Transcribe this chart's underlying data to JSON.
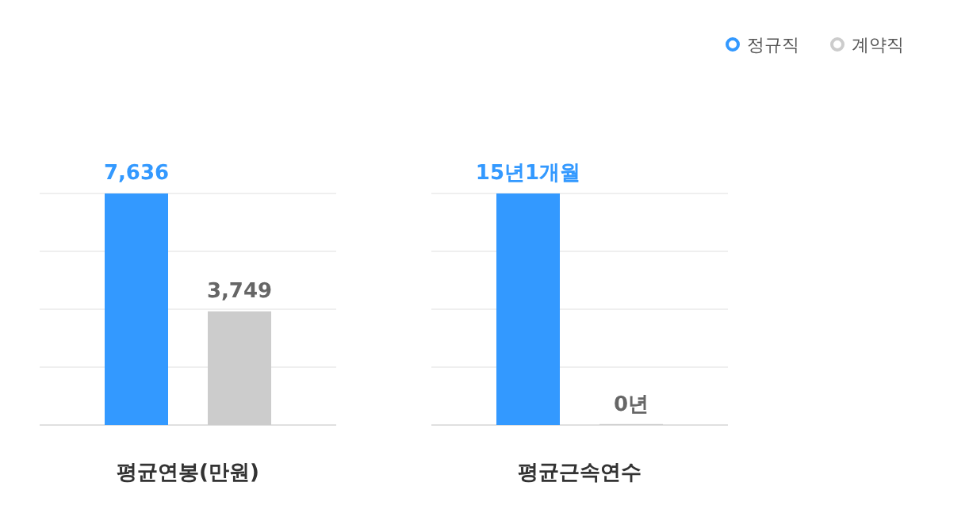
{
  "chart_data": [
    {
      "type": "bar",
      "categories": [
        null
      ],
      "xlabel": "평균연봉(만원)",
      "ylim": [
        0,
        7636
      ],
      "yticks": [
        {
          "value": 0,
          "label": null
        },
        {
          "value": 1909,
          "label": null
        },
        {
          "value": 3818,
          "label": null
        },
        {
          "value": 5727,
          "label": null
        },
        {
          "value": 7636,
          "label": null
        }
      ],
      "grid": "y",
      "series": [
        {
          "color": "#3399ff",
          "values": [
            7636
          ],
          "value_labels": [
            "7,636"
          ]
        },
        {
          "color": "#cccccc",
          "values": [
            3749
          ],
          "value_labels": [
            "3,749"
          ]
        }
      ]
    },
    {
      "type": "bar",
      "categories": [
        null
      ],
      "xlabel": "평균근속연수",
      "ylim": [
        0,
        15.08
      ],
      "yticks": [
        {
          "value": 0,
          "label": null
        },
        {
          "value": 3.77,
          "label": null
        },
        {
          "value": 7.54,
          "label": null
        },
        {
          "value": 11.31,
          "label": null
        },
        {
          "value": 15.08,
          "label": null
        }
      ],
      "grid": "y",
      "legend": "top right",
      "series": [
        {
          "name": "정규직",
          "color": "#3399ff",
          "values": [
            15.08
          ],
          "value_labels": [
            "15년1개월"
          ]
        },
        {
          "name": "계약직",
          "color": "#cccccc",
          "values": [
            0
          ],
          "value_labels": [
            "0년"
          ]
        }
      ]
    }
  ]
}
